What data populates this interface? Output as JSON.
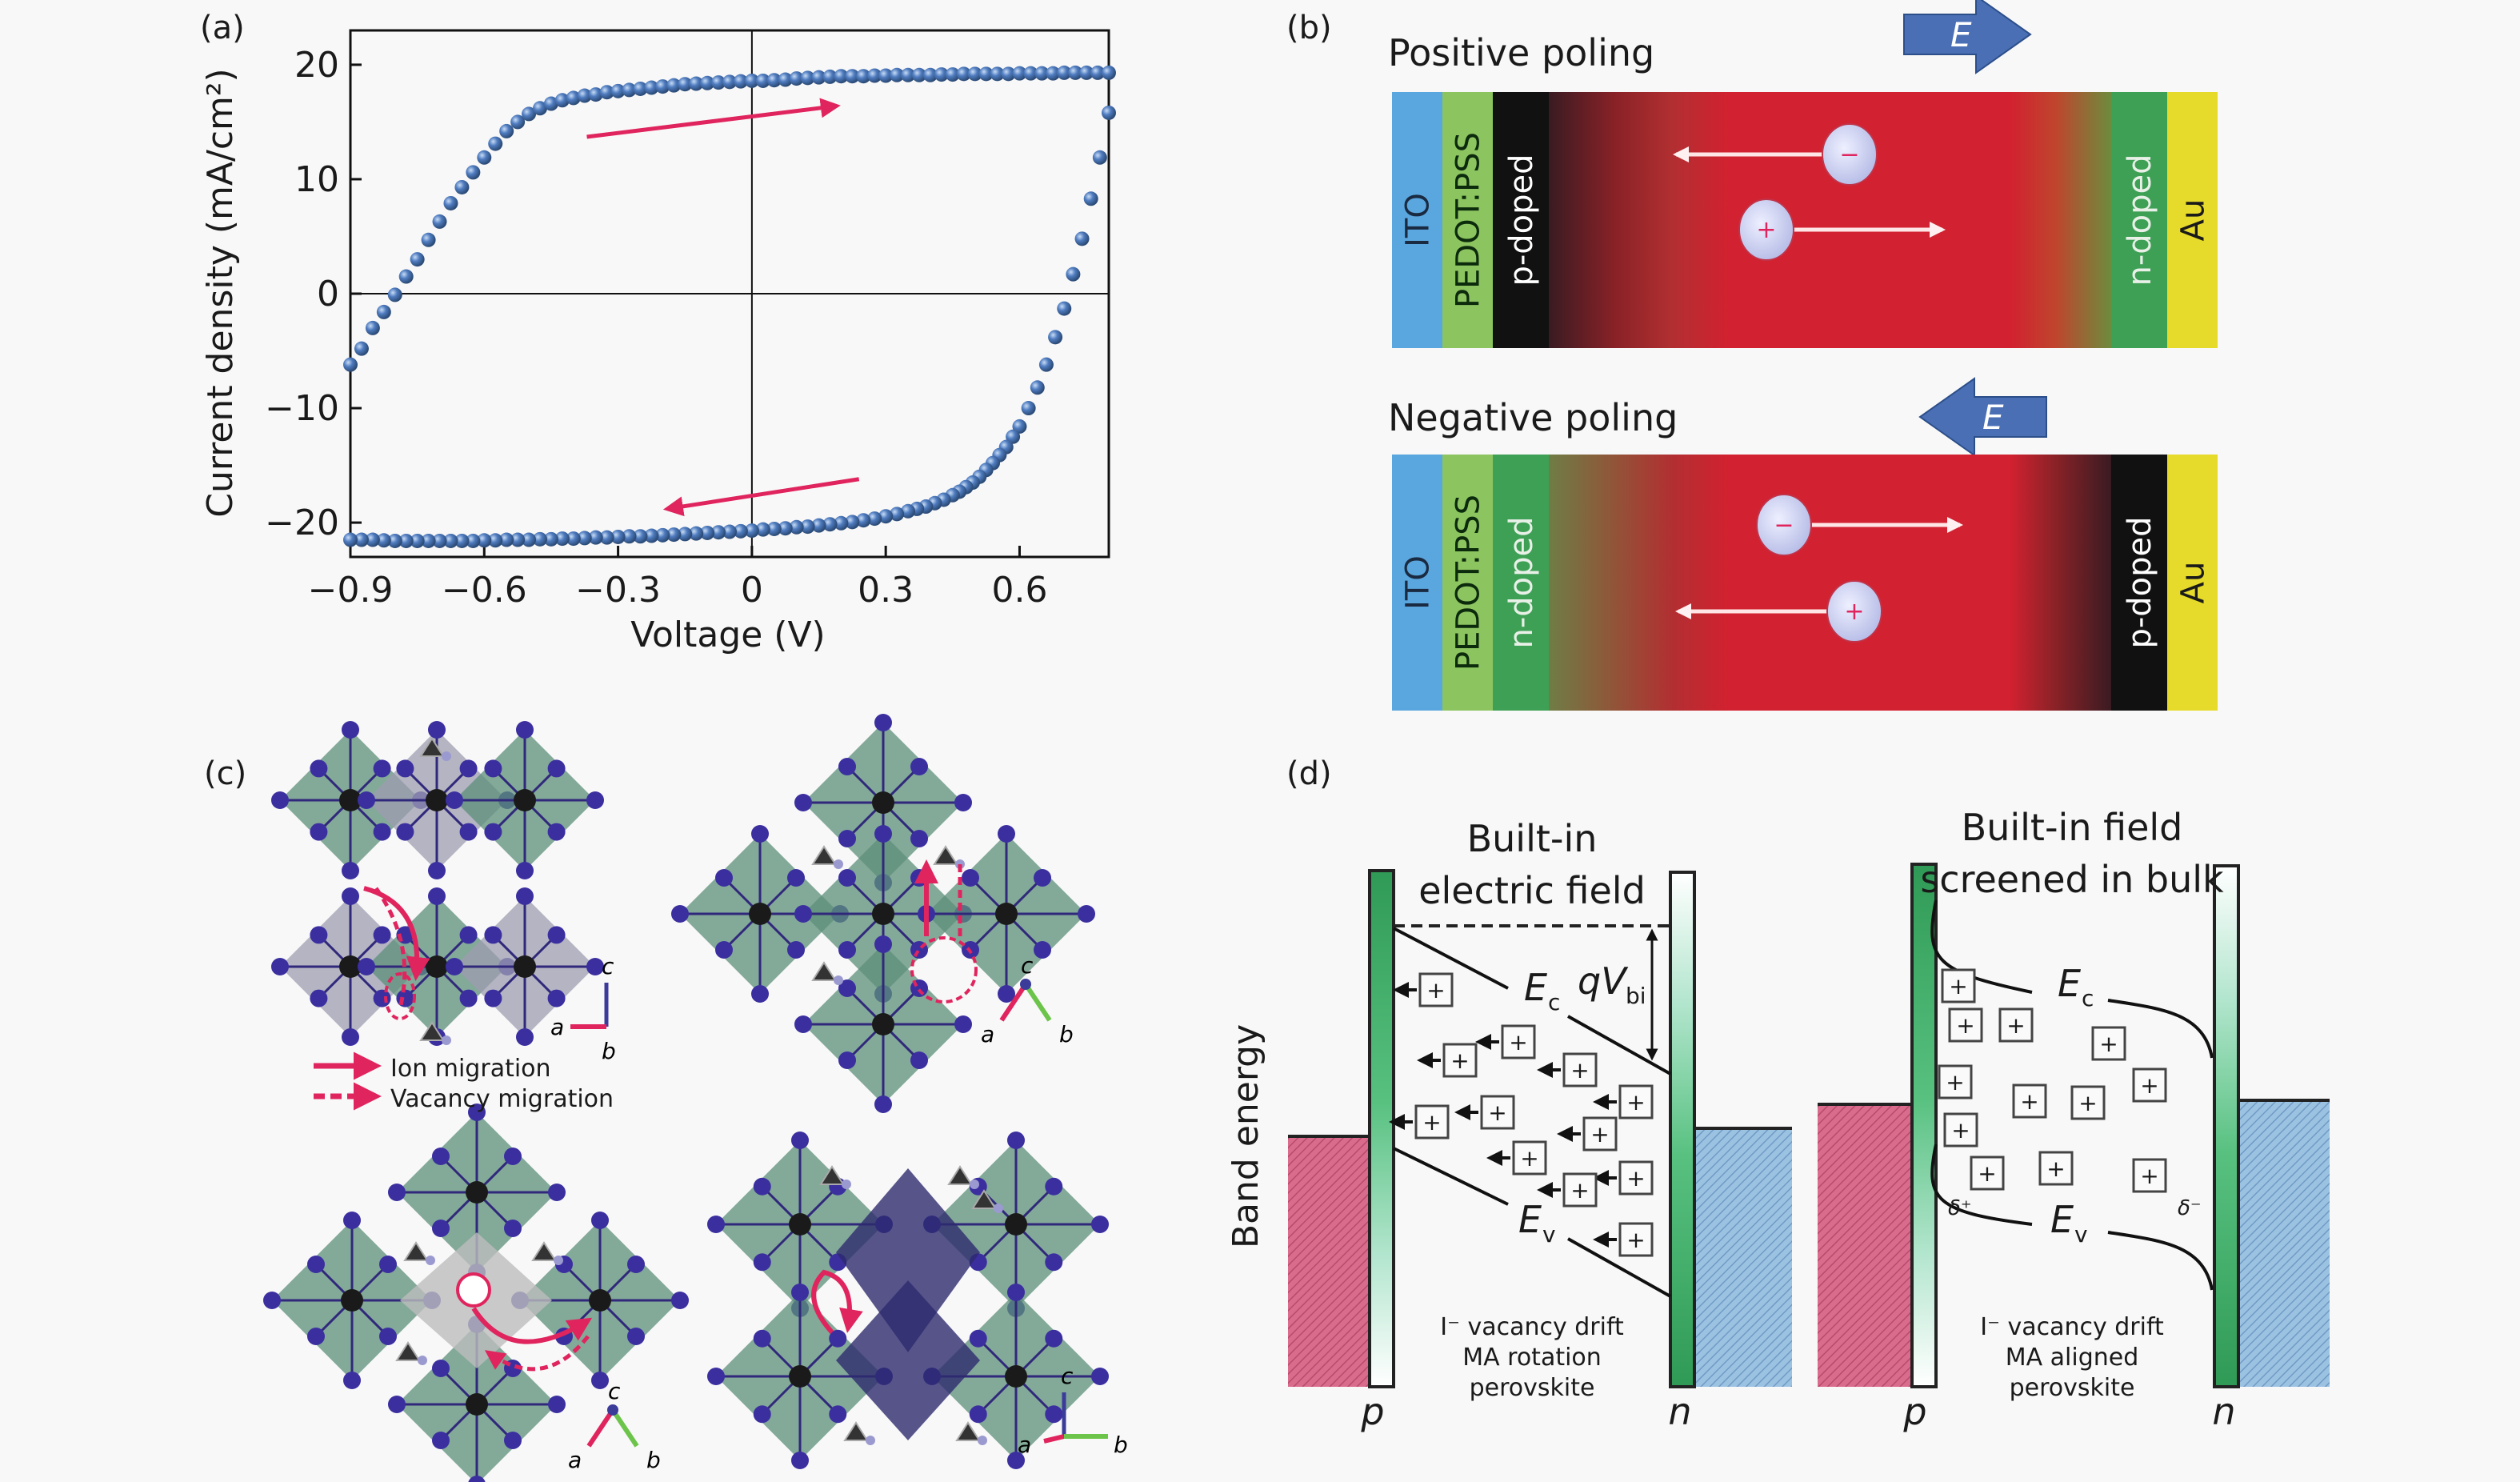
{
  "panels": {
    "a": {
      "label": "(a)",
      "chart_data": {
        "type": "scatter",
        "title": "",
        "xlabel": "Voltage (V)",
        "ylabel": "Current density (mA/cm²)",
        "xlim": [
          -0.9,
          0.8
        ],
        "ylim": [
          -23,
          23
        ],
        "xticks": [
          -0.9,
          -0.6,
          -0.3,
          0,
          0.3,
          0.6
        ],
        "xtick_labels": [
          "−0.9",
          "−0.6",
          "−0.3",
          "0",
          "0.3",
          "0.6"
        ],
        "yticks": [
          -20,
          -10,
          0,
          10,
          20
        ],
        "ytick_labels": [
          "−20",
          "−10",
          "0",
          "10",
          "20"
        ],
        "grid": false,
        "zero_lines": true,
        "marker_color": "#4a76b8",
        "arrow_color": "#e0245e",
        "series": [
          {
            "name": "forward scan",
            "direction": "increasing voltage",
            "x": [
              -0.9,
              -0.875,
              -0.85,
              -0.825,
              -0.8,
              -0.775,
              -0.75,
              -0.725,
              -0.7,
              -0.675,
              -0.65,
              -0.625,
              -0.6,
              -0.575,
              -0.55,
              -0.525,
              -0.5,
              -0.475,
              -0.45,
              -0.425,
              -0.4,
              -0.375,
              -0.35,
              -0.325,
              -0.3,
              -0.275,
              -0.25,
              -0.225,
              -0.2,
              -0.175,
              -0.15,
              -0.125,
              -0.1,
              -0.075,
              -0.05,
              -0.025,
              0,
              0.025,
              0.05,
              0.075,
              0.1,
              0.125,
              0.15,
              0.175,
              0.2,
              0.225,
              0.25,
              0.275,
              0.3,
              0.325,
              0.35,
              0.375,
              0.4,
              0.425,
              0.45,
              0.475,
              0.5,
              0.525,
              0.55,
              0.575,
              0.6,
              0.625,
              0.65,
              0.675,
              0.7,
              0.725,
              0.75,
              0.775,
              0.8
            ],
            "y": [
              -6.2,
              -4.8,
              -3.0,
              -1.6,
              -0.1,
              1.5,
              3.0,
              4.7,
              6.3,
              7.9,
              9.3,
              10.6,
              11.9,
              13.1,
              14.2,
              15.0,
              15.7,
              16.2,
              16.6,
              16.9,
              17.1,
              17.3,
              17.4,
              17.6,
              17.7,
              17.8,
              17.9,
              18.0,
              18.1,
              18.2,
              18.3,
              18.35,
              18.4,
              18.45,
              18.5,
              18.55,
              18.6,
              18.6,
              18.65,
              18.7,
              18.8,
              18.85,
              18.9,
              18.95,
              19.0,
              19.0,
              19.0,
              19.05,
              19.05,
              19.1,
              19.1,
              19.1,
              19.1,
              19.15,
              19.15,
              19.2,
              19.2,
              19.2,
              19.2,
              19.2,
              19.25,
              19.25,
              19.25,
              19.25,
              19.3,
              19.3,
              19.3,
              19.3,
              19.3
            ]
          },
          {
            "name": "reverse scan",
            "direction": "decreasing voltage",
            "x": [
              0.8,
              0.78,
              0.76,
              0.74,
              0.72,
              0.7,
              0.68,
              0.66,
              0.64,
              0.62,
              0.6,
              0.585,
              0.57,
              0.555,
              0.54,
              0.525,
              0.51,
              0.495,
              0.48,
              0.465,
              0.45,
              0.43,
              0.41,
              0.39,
              0.37,
              0.35,
              0.325,
              0.3,
              0.275,
              0.25,
              0.225,
              0.2,
              0.175,
              0.15,
              0.125,
              0.1,
              0.075,
              0.05,
              0.025,
              0,
              -0.025,
              -0.05,
              -0.075,
              -0.1,
              -0.125,
              -0.15,
              -0.175,
              -0.2,
              -0.225,
              -0.25,
              -0.275,
              -0.3,
              -0.325,
              -0.35,
              -0.375,
              -0.4,
              -0.425,
              -0.45,
              -0.475,
              -0.5,
              -0.525,
              -0.55,
              -0.575,
              -0.6,
              -0.625,
              -0.65,
              -0.675,
              -0.7,
              -0.725,
              -0.75,
              -0.775,
              -0.8,
              -0.825,
              -0.85,
              -0.875,
              -0.9
            ],
            "y": [
              15.8,
              11.9,
              8.3,
              4.8,
              1.7,
              -1.3,
              -3.8,
              -6.2,
              -8.2,
              -10.0,
              -11.6,
              -12.5,
              -13.4,
              -14.1,
              -14.8,
              -15.4,
              -16.0,
              -16.5,
              -16.9,
              -17.3,
              -17.6,
              -18.0,
              -18.3,
              -18.6,
              -18.8,
              -19.0,
              -19.25,
              -19.45,
              -19.65,
              -19.8,
              -19.95,
              -20.05,
              -20.15,
              -20.25,
              -20.35,
              -20.4,
              -20.5,
              -20.55,
              -20.6,
              -20.7,
              -20.75,
              -20.8,
              -20.85,
              -20.9,
              -20.95,
              -21.0,
              -21.05,
              -21.1,
              -21.15,
              -21.2,
              -21.2,
              -21.25,
              -21.3,
              -21.3,
              -21.35,
              -21.4,
              -21.4,
              -21.45,
              -21.45,
              -21.5,
              -21.5,
              -21.5,
              -21.55,
              -21.55,
              -21.6,
              -21.6,
              -21.6,
              -21.6,
              -21.6,
              -21.6,
              -21.6,
              -21.6,
              -21.55,
              -21.5,
              -21.5,
              -21.5
            ]
          }
        ],
        "annotations": [
          {
            "type": "arrow",
            "meaning": "forward scan direction",
            "from": [
              -0.37,
              13.7
            ],
            "to": [
              0.19,
              16.4
            ]
          },
          {
            "type": "arrow",
            "meaning": "reverse scan direction",
            "from": [
              0.24,
              -16.2
            ],
            "to": [
              -0.19,
              -18.8
            ]
          }
        ]
      }
    },
    "b": {
      "label": "(b)",
      "field_symbol": "E",
      "field_arrow_color": "#4a6fb5",
      "devices": [
        {
          "title": "Positive poling",
          "field_direction": "right",
          "layers": [
            {
              "name": "ITO",
              "color": "#5aa6de",
              "text_color": "#1a2a40"
            },
            {
              "name": "PEDOT:PSS",
              "color": "#8cc460",
              "text_color": "#0c2a0c"
            },
            {
              "name": "p-doped",
              "color": "#111111",
              "text_color": "#ffffff"
            },
            {
              "name": "",
              "color": "#d32331",
              "text_color": ""
            },
            {
              "name": "n-doped",
              "color": "#3ea055",
              "text_color": "#e8f0e8"
            },
            {
              "name": "Au",
              "color": "#e6da2a",
              "text_color": "#1a1a1a"
            }
          ],
          "charges": [
            {
              "sign": "−",
              "moves": "left"
            },
            {
              "sign": "+",
              "moves": "right"
            }
          ]
        },
        {
          "title": "Negative poling",
          "field_direction": "left",
          "layers": [
            {
              "name": "ITO",
              "color": "#5aa6de",
              "text_color": "#1a2a40"
            },
            {
              "name": "PEDOT:PSS",
              "color": "#8cc460",
              "text_color": "#0c2a0c"
            },
            {
              "name": "n-doped",
              "color": "#3ea055",
              "text_color": "#e8f0e8"
            },
            {
              "name": "",
              "color": "#d32331",
              "text_color": ""
            },
            {
              "name": "p-doped",
              "color": "#111111",
              "text_color": "#ffffff"
            },
            {
              "name": "Au",
              "color": "#e6da2a",
              "text_color": "#1a1a1a"
            }
          ],
          "charges": [
            {
              "sign": "−",
              "moves": "right"
            },
            {
              "sign": "+",
              "moves": "left"
            }
          ]
        }
      ]
    },
    "c": {
      "label": "(c)",
      "legend": [
        {
          "label": "Ion migration",
          "style": "solid",
          "color": "#e0245e"
        },
        {
          "label": "Vacancy migration",
          "style": "dashed",
          "color": "#e0245e"
        }
      ],
      "structures": [
        {
          "view": "view-1",
          "axes": [
            "c",
            "a",
            "b"
          ]
        },
        {
          "view": "view-2",
          "axes": [
            "c",
            "a",
            "b"
          ]
        },
        {
          "view": "view-3",
          "axes": [
            "c",
            "a",
            "b"
          ]
        },
        {
          "view": "view-4",
          "axes": [
            "c",
            "a",
            "b"
          ]
        }
      ],
      "colors": {
        "halide_atom": "#3b2fa0",
        "metal_atom": "#1a1a1a",
        "octahedron": "#5c8f7a",
        "octahedron_alt": "#9e9eb0"
      }
    },
    "d": {
      "label": "(d)",
      "ylabel": "Band energy",
      "diagrams": [
        {
          "title_line1": "Built-in",
          "title_line2": "electric field",
          "ec_label": "E",
          "ec_sub": "c",
          "ev_label": "E",
          "ev_sub": "v",
          "vbi_label": "qV",
          "vbi_sub": "bi",
          "caption_line1": "I⁻ vacancy drift",
          "caption_line2": "MA rotation",
          "caption_line3": "perovskite",
          "p_label": "p",
          "n_label": "n"
        },
        {
          "title_line1": "Built-in field",
          "title_line2": "screened in bulk",
          "ec_label": "E",
          "ec_sub": "c",
          "ev_label": "E",
          "ev_sub": "v",
          "delta_plus": "δ⁺",
          "delta_minus": "δ⁻",
          "caption_line1": "I⁻ vacancy drift",
          "caption_line2": "MA aligned",
          "caption_line3": "perovskite",
          "p_label": "p",
          "n_label": "n"
        }
      ],
      "ion_symbol": "+",
      "colors": {
        "p_region": "#d96b8c",
        "n_region": "#8fb9dc",
        "electrode": "#3fa865"
      }
    }
  }
}
